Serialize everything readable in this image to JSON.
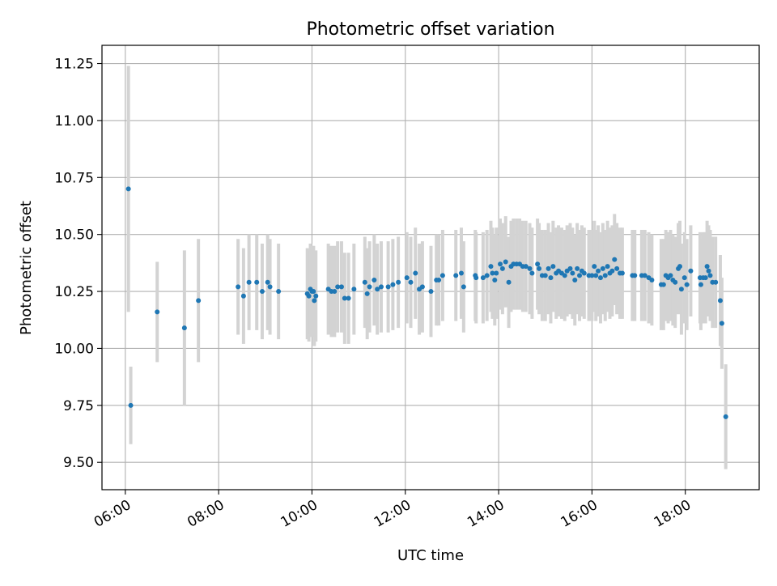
{
  "chart_data": {
    "type": "scatter",
    "title": "Photometric offset variation",
    "xlabel": "UTC time",
    "ylabel": "Photometric offset",
    "xlim": [
      "05:30",
      "19:35"
    ],
    "ylim": [
      9.38,
      11.33
    ],
    "xticks": [
      "06:00",
      "08:00",
      "10:00",
      "12:00",
      "14:00",
      "16:00",
      "18:00"
    ],
    "yticks": [
      "9.50",
      "9.75",
      "10.00",
      "10.25",
      "10.50",
      "10.75",
      "11.00",
      "11.25"
    ],
    "grid": true,
    "colors": {
      "point": "#1f77b4",
      "errorbar": "#d3d3d3",
      "grid": "#b0b0b0"
    },
    "series": [
      {
        "points": [
          {
            "x": "06:04",
            "y": 10.7,
            "err": 0.54
          },
          {
            "x": "06:07",
            "y": 9.75,
            "err": 0.17
          },
          {
            "x": "06:41",
            "y": 10.16,
            "err": 0.22
          },
          {
            "x": "07:16",
            "y": 10.09,
            "err": 0.34
          },
          {
            "x": "07:34",
            "y": 10.21,
            "err": 0.27
          },
          {
            "x": "08:25",
            "y": 10.27,
            "err": 0.21
          },
          {
            "x": "08:32",
            "y": 10.23,
            "err": 0.21
          },
          {
            "x": "08:39",
            "y": 10.29,
            "err": 0.21
          },
          {
            "x": "08:49",
            "y": 10.29,
            "err": 0.21
          },
          {
            "x": "08:56",
            "y": 10.25,
            "err": 0.21
          },
          {
            "x": "09:03",
            "y": 10.29,
            "err": 0.21
          },
          {
            "x": "09:06",
            "y": 10.27,
            "err": 0.21
          },
          {
            "x": "09:17",
            "y": 10.25,
            "err": 0.21
          },
          {
            "x": "09:54",
            "y": 10.24,
            "err": 0.2
          },
          {
            "x": "09:56",
            "y": 10.23,
            "err": 0.2
          },
          {
            "x": "09:58",
            "y": 10.26,
            "err": 0.2
          },
          {
            "x": "10:00",
            "y": 10.25,
            "err": 0.2
          },
          {
            "x": "10:02",
            "y": 10.25,
            "err": 0.2
          },
          {
            "x": "10:03",
            "y": 10.21,
            "err": 0.2
          },
          {
            "x": "10:05",
            "y": 10.23,
            "err": 0.2
          },
          {
            "x": "10:21",
            "y": 10.26,
            "err": 0.2
          },
          {
            "x": "10:25",
            "y": 10.25,
            "err": 0.2
          },
          {
            "x": "10:29",
            "y": 10.25,
            "err": 0.2
          },
          {
            "x": "10:33",
            "y": 10.27,
            "err": 0.2
          },
          {
            "x": "10:38",
            "y": 10.27,
            "err": 0.2
          },
          {
            "x": "10:42",
            "y": 10.22,
            "err": 0.2
          },
          {
            "x": "10:47",
            "y": 10.22,
            "err": 0.2
          },
          {
            "x": "10:54",
            "y": 10.26,
            "err": 0.2
          },
          {
            "x": "11:08",
            "y": 10.29,
            "err": 0.2
          },
          {
            "x": "11:11",
            "y": 10.24,
            "err": 0.2
          },
          {
            "x": "11:14",
            "y": 10.27,
            "err": 0.2
          },
          {
            "x": "11:20",
            "y": 10.3,
            "err": 0.2
          },
          {
            "x": "11:24",
            "y": 10.26,
            "err": 0.2
          },
          {
            "x": "11:29",
            "y": 10.27,
            "err": 0.2
          },
          {
            "x": "11:38",
            "y": 10.27,
            "err": 0.2
          },
          {
            "x": "11:44",
            "y": 10.28,
            "err": 0.2
          },
          {
            "x": "11:51",
            "y": 10.29,
            "err": 0.2
          },
          {
            "x": "12:02",
            "y": 10.31,
            "err": 0.2
          },
          {
            "x": "12:07",
            "y": 10.29,
            "err": 0.2
          },
          {
            "x": "12:13",
            "y": 10.33,
            "err": 0.2
          },
          {
            "x": "12:18",
            "y": 10.26,
            "err": 0.2
          },
          {
            "x": "12:22",
            "y": 10.27,
            "err": 0.2
          },
          {
            "x": "12:33",
            "y": 10.25,
            "err": 0.2
          },
          {
            "x": "12:40",
            "y": 10.3,
            "err": 0.2
          },
          {
            "x": "12:43",
            "y": 10.3,
            "err": 0.2
          },
          {
            "x": "12:48",
            "y": 10.32,
            "err": 0.2
          },
          {
            "x": "13:05",
            "y": 10.32,
            "err": 0.2
          },
          {
            "x": "13:12",
            "y": 10.33,
            "err": 0.2
          },
          {
            "x": "13:15",
            "y": 10.27,
            "err": 0.2
          },
          {
            "x": "13:30",
            "y": 10.32,
            "err": 0.2
          },
          {
            "x": "13:31",
            "y": 10.31,
            "err": 0.2
          },
          {
            "x": "13:40",
            "y": 10.31,
            "err": 0.2
          },
          {
            "x": "13:45",
            "y": 10.32,
            "err": 0.2
          },
          {
            "x": "13:50",
            "y": 10.36,
            "err": 0.2
          },
          {
            "x": "13:52",
            "y": 10.33,
            "err": 0.2
          },
          {
            "x": "13:55",
            "y": 10.3,
            "err": 0.2
          },
          {
            "x": "13:57",
            "y": 10.33,
            "err": 0.2
          },
          {
            "x": "14:02",
            "y": 10.37,
            "err": 0.2
          },
          {
            "x": "14:05",
            "y": 10.35,
            "err": 0.2
          },
          {
            "x": "14:09",
            "y": 10.38,
            "err": 0.2
          },
          {
            "x": "14:13",
            "y": 10.29,
            "err": 0.2
          },
          {
            "x": "14:16",
            "y": 10.36,
            "err": 0.2
          },
          {
            "x": "14:19",
            "y": 10.37,
            "err": 0.2
          },
          {
            "x": "14:23",
            "y": 10.37,
            "err": 0.2
          },
          {
            "x": "14:27",
            "y": 10.37,
            "err": 0.2
          },
          {
            "x": "14:31",
            "y": 10.36,
            "err": 0.2
          },
          {
            "x": "14:35",
            "y": 10.36,
            "err": 0.2
          },
          {
            "x": "14:40",
            "y": 10.35,
            "err": 0.2
          },
          {
            "x": "14:43",
            "y": 10.33,
            "err": 0.2
          },
          {
            "x": "14:50",
            "y": 10.37,
            "err": 0.2
          },
          {
            "x": "14:52",
            "y": 10.35,
            "err": 0.2
          },
          {
            "x": "14:56",
            "y": 10.32,
            "err": 0.2
          },
          {
            "x": "15:00",
            "y": 10.32,
            "err": 0.2
          },
          {
            "x": "15:04",
            "y": 10.35,
            "err": 0.2
          },
          {
            "x": "15:07",
            "y": 10.31,
            "err": 0.2
          },
          {
            "x": "15:10",
            "y": 10.36,
            "err": 0.2
          },
          {
            "x": "15:14",
            "y": 10.33,
            "err": 0.2
          },
          {
            "x": "15:17",
            "y": 10.34,
            "err": 0.2
          },
          {
            "x": "15:21",
            "y": 10.33,
            "err": 0.2
          },
          {
            "x": "15:25",
            "y": 10.32,
            "err": 0.2
          },
          {
            "x": "15:28",
            "y": 10.34,
            "err": 0.2
          },
          {
            "x": "15:32",
            "y": 10.35,
            "err": 0.2
          },
          {
            "x": "15:35",
            "y": 10.33,
            "err": 0.2
          },
          {
            "x": "15:38",
            "y": 10.3,
            "err": 0.2
          },
          {
            "x": "15:41",
            "y": 10.35,
            "err": 0.2
          },
          {
            "x": "15:44",
            "y": 10.32,
            "err": 0.2
          },
          {
            "x": "15:47",
            "y": 10.34,
            "err": 0.2
          },
          {
            "x": "15:50",
            "y": 10.33,
            "err": 0.2
          },
          {
            "x": "15:56",
            "y": 10.32,
            "err": 0.2
          },
          {
            "x": "16:00",
            "y": 10.32,
            "err": 0.2
          },
          {
            "x": "16:03",
            "y": 10.36,
            "err": 0.2
          },
          {
            "x": "16:05",
            "y": 10.32,
            "err": 0.2
          },
          {
            "x": "16:08",
            "y": 10.34,
            "err": 0.2
          },
          {
            "x": "16:11",
            "y": 10.31,
            "err": 0.2
          },
          {
            "x": "16:14",
            "y": 10.35,
            "err": 0.2
          },
          {
            "x": "16:17",
            "y": 10.32,
            "err": 0.2
          },
          {
            "x": "16:20",
            "y": 10.36,
            "err": 0.2
          },
          {
            "x": "16:23",
            "y": 10.33,
            "err": 0.2
          },
          {
            "x": "16:26",
            "y": 10.34,
            "err": 0.2
          },
          {
            "x": "16:29",
            "y": 10.39,
            "err": 0.2
          },
          {
            "x": "16:32",
            "y": 10.35,
            "err": 0.2
          },
          {
            "x": "16:36",
            "y": 10.33,
            "err": 0.2
          },
          {
            "x": "16:39",
            "y": 10.33,
            "err": 0.2
          },
          {
            "x": "16:52",
            "y": 10.32,
            "err": 0.2
          },
          {
            "x": "16:55",
            "y": 10.32,
            "err": 0.2
          },
          {
            "x": "17:04",
            "y": 10.32,
            "err": 0.2
          },
          {
            "x": "17:08",
            "y": 10.32,
            "err": 0.2
          },
          {
            "x": "17:13",
            "y": 10.31,
            "err": 0.2
          },
          {
            "x": "17:17",
            "y": 10.3,
            "err": 0.2
          },
          {
            "x": "17:29",
            "y": 10.28,
            "err": 0.2
          },
          {
            "x": "17:32",
            "y": 10.28,
            "err": 0.2
          },
          {
            "x": "17:35",
            "y": 10.32,
            "err": 0.2
          },
          {
            "x": "17:38",
            "y": 10.31,
            "err": 0.2
          },
          {
            "x": "17:41",
            "y": 10.32,
            "err": 0.2
          },
          {
            "x": "17:44",
            "y": 10.3,
            "err": 0.2
          },
          {
            "x": "17:47",
            "y": 10.29,
            "err": 0.2
          },
          {
            "x": "17:51",
            "y": 10.35,
            "err": 0.2
          },
          {
            "x": "17:53",
            "y": 10.36,
            "err": 0.2
          },
          {
            "x": "17:55",
            "y": 10.26,
            "err": 0.2
          },
          {
            "x": "17:59",
            "y": 10.31,
            "err": 0.2
          },
          {
            "x": "18:02",
            "y": 10.28,
            "err": 0.2
          },
          {
            "x": "18:07",
            "y": 10.34,
            "err": 0.2
          },
          {
            "x": "18:19",
            "y": 10.31,
            "err": 0.2
          },
          {
            "x": "18:20",
            "y": 10.28,
            "err": 0.2
          },
          {
            "x": "18:23",
            "y": 10.31,
            "err": 0.2
          },
          {
            "x": "18:26",
            "y": 10.31,
            "err": 0.2
          },
          {
            "x": "18:28",
            "y": 10.36,
            "err": 0.2
          },
          {
            "x": "18:30",
            "y": 10.34,
            "err": 0.2
          },
          {
            "x": "18:32",
            "y": 10.32,
            "err": 0.2
          },
          {
            "x": "18:35",
            "y": 10.29,
            "err": 0.2
          },
          {
            "x": "18:39",
            "y": 10.29,
            "err": 0.2
          },
          {
            "x": "18:45",
            "y": 10.21,
            "err": 0.2
          },
          {
            "x": "18:47",
            "y": 10.11,
            "err": 0.2
          },
          {
            "x": "18:52",
            "y": 9.7,
            "err": 0.23
          }
        ]
      }
    ]
  }
}
